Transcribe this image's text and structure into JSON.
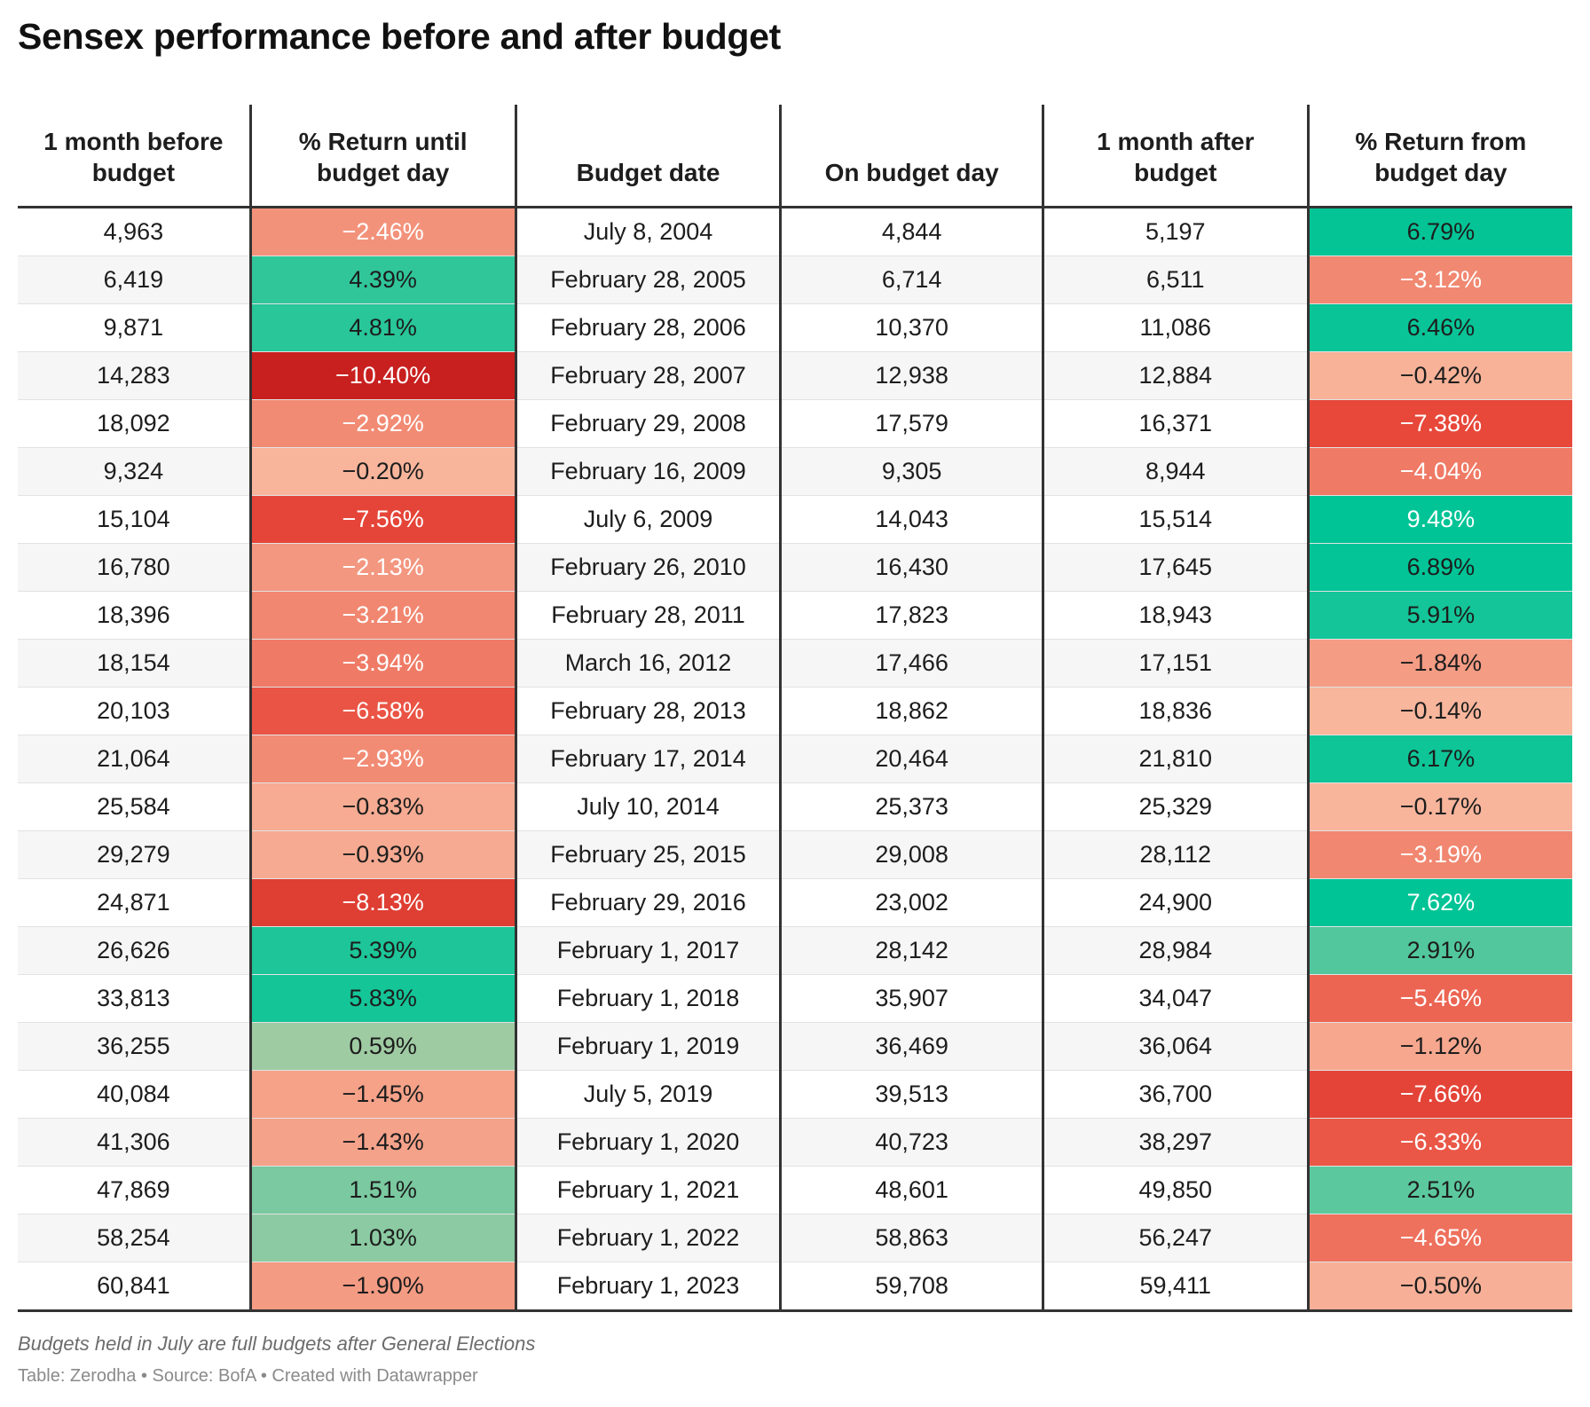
{
  "title": "Sensex performance before and after budget",
  "headers": [
    "1 month before\nbudget",
    "% Return until\nbudget day",
    "Budget date",
    "On budget day",
    "1 month after\nbudget",
    "% Return from\nbudget day"
  ],
  "notes": "Budgets held in July are full budgets after General Elections",
  "byline": "Table: Zerodha • Source: BofA • Created with Datawrapper",
  "heatmap_colors": {
    "strong_negative": "#c8201f",
    "negative": "#e8493b",
    "mild_negative": "#f0806a",
    "slight_negative": "#f8b89e",
    "neutral": "#d6cda8",
    "positive": "#3ad6b0",
    "strong_positive": "#00c496"
  },
  "chart_data": {
    "type": "table",
    "title": "Sensex performance before and after budget",
    "columns": [
      "1 month before budget",
      "% Return until budget day",
      "Budget date",
      "On budget day",
      "1 month after budget",
      "% Return from budget day"
    ],
    "rows": [
      [
        "4,963",
        "−2.46%",
        "July 8, 2004",
        "4,844",
        "5,197",
        "6.79%"
      ],
      [
        "6,419",
        "4.39%",
        "February 28, 2005",
        "6,714",
        "6,511",
        "−3.12%"
      ],
      [
        "9,871",
        "4.81%",
        "February 28, 2006",
        "10,370",
        "11,086",
        "6.46%"
      ],
      [
        "14,283",
        "−10.40%",
        "February 28, 2007",
        "12,938",
        "12,884",
        "−0.42%"
      ],
      [
        "18,092",
        "−2.92%",
        "February 29, 2008",
        "17,579",
        "16,371",
        "−7.38%"
      ],
      [
        "9,324",
        "−0.20%",
        "February 16, 2009",
        "9,305",
        "8,944",
        "−4.04%"
      ],
      [
        "15,104",
        "−7.56%",
        "July 6, 2009",
        "14,043",
        "15,514",
        "9.48%"
      ],
      [
        "16,780",
        "−2.13%",
        "February 26, 2010",
        "16,430",
        "17,645",
        "6.89%"
      ],
      [
        "18,396",
        "−3.21%",
        "February 28, 2011",
        "17,823",
        "18,943",
        "5.91%"
      ],
      [
        "18,154",
        "−3.94%",
        "March 16, 2012",
        "17,466",
        "17,151",
        "−1.84%"
      ],
      [
        "20,103",
        "−6.58%",
        "February 28, 2013",
        "18,862",
        "18,836",
        "−0.14%"
      ],
      [
        "21,064",
        "−2.93%",
        "February 17, 2014",
        "20,464",
        "21,810",
        "6.17%"
      ],
      [
        "25,584",
        "−0.83%",
        "July 10, 2014",
        "25,373",
        "25,329",
        "−0.17%"
      ],
      [
        "29,279",
        "−0.93%",
        "February 25, 2015",
        "29,008",
        "28,112",
        "−3.19%"
      ],
      [
        "24,871",
        "−8.13%",
        "February 29, 2016",
        "23,002",
        "24,900",
        "7.62%"
      ],
      [
        "26,626",
        "5.39%",
        "February 1, 2017",
        "28,142",
        "28,984",
        "2.91%"
      ],
      [
        "33,813",
        "5.83%",
        "February 1, 2018",
        "35,907",
        "34,047",
        "−5.46%"
      ],
      [
        "36,255",
        "0.59%",
        "February 1, 2019",
        "36,469",
        "36,064",
        "−1.12%"
      ],
      [
        "40,084",
        "−1.45%",
        "July 5, 2019",
        "39,513",
        "36,700",
        "−7.66%"
      ],
      [
        "41,306",
        "−1.43%",
        "February 1, 2020",
        "40,723",
        "38,297",
        "−6.33%"
      ],
      [
        "47,869",
        "1.51%",
        "February 1, 2021",
        "48,601",
        "49,850",
        "2.51%"
      ],
      [
        "58,254",
        "1.03%",
        "February 1, 2022",
        "58,863",
        "56,247",
        "−4.65%"
      ],
      [
        "60,841",
        "−1.90%",
        "February 1, 2023",
        "59,708",
        "59,411",
        "−0.50%"
      ]
    ],
    "heatmap_columns": [
      1,
      5
    ]
  }
}
